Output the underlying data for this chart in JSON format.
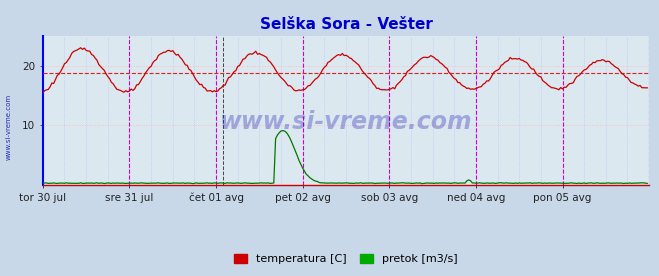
{
  "title": "Selška Sora - Vešter",
  "title_color": "#0000cc",
  "title_fontsize": 11,
  "bg_color": "#c8d8e8",
  "plot_bg_color": "#dce8f0",
  "watermark": "www.si-vreme.com",
  "watermark_color": "#0000aa",
  "xlim": [
    0,
    336
  ],
  "ylim": [
    0,
    25
  ],
  "yticks": [
    10,
    20
  ],
  "h_grid_color": "#ffbbbb",
  "v_grid_color": "#bbbbff",
  "vline_color_magenta": "#cc00cc",
  "vline_color_black_dash": "#444444",
  "avg_line_y": 18.8,
  "avg_line_color": "#dd2222",
  "temp_color": "#cc0000",
  "flow_color": "#007700",
  "legend_items": [
    "temperatura [C]",
    "pretok [m3/s]"
  ],
  "legend_colors": [
    "#cc0000",
    "#00aa00"
  ],
  "x_tick_labels": [
    "tor 30 jul",
    "sre 31 jul",
    "čet 01 avg",
    "pet 02 avg",
    "sob 03 avg",
    "ned 04 avg",
    "pon 05 avg"
  ],
  "x_tick_positions": [
    0,
    48,
    96,
    144,
    192,
    240,
    288
  ],
  "day_vlines": [
    48,
    96,
    144,
    192,
    240,
    288
  ],
  "right_vline": 336,
  "n_points": 336,
  "left_spine_color": "#0000ff",
  "bottom_spine_color": "#cc0000",
  "right_vline_color": "#cc0000"
}
